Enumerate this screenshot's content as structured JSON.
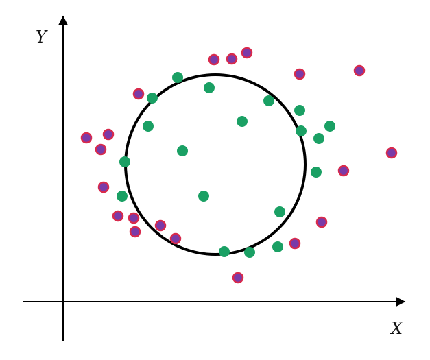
{
  "axes": {
    "x_label": "X",
    "y_label": "Y",
    "color": "#000000"
  },
  "circle": {
    "stroke": "#000000",
    "fill": "none"
  },
  "styles": {
    "green": {
      "fill": "#1aa064",
      "stroke": "#1aa064"
    },
    "purple": {
      "fill": "#7a3aa8",
      "stroke": "#d82a4c"
    }
  }
}
